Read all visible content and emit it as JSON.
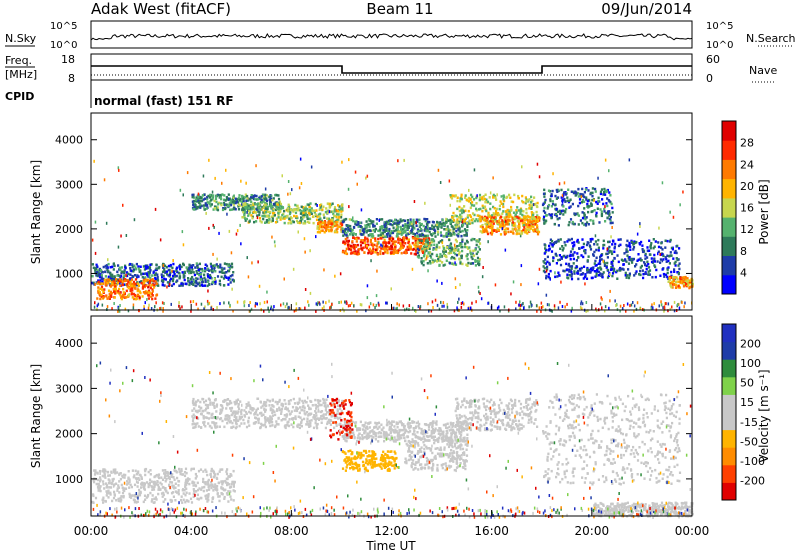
{
  "header": {
    "station": "Adak West (fitACF)",
    "beam": "Beam 11",
    "date": "09/Jun/2014"
  },
  "top_panels": {
    "nsky_label": "N.Sky",
    "nsky_ticks": [
      "10^5",
      "10^0"
    ],
    "nsearch_label": "N.Search",
    "nsearch_ticks": [
      "10^5",
      "10^0"
    ],
    "freq_label": "Freq.",
    "freq_unit": "[MHz]",
    "freq_ticks": [
      "18",
      "8"
    ],
    "nave_label": "Nave",
    "nave_ticks": [
      "60",
      "0"
    ],
    "cpid_label": "CPID",
    "cpid_text": "normal (fast) 151 RF"
  },
  "colors": {
    "power_scale": [
      "#0000ff",
      "#1e3ca8",
      "#2e7a5a",
      "#55b26e",
      "#c7d64e",
      "#ffb400",
      "#ff7a00",
      "#ff2a00",
      "#e00000"
    ],
    "velocity_scale": [
      "#e00000",
      "#ff4000",
      "#ff8c00",
      "#ffb400",
      "#c8c8c8",
      "#c8c8c8",
      "#7fd24a",
      "#2e8c3c",
      "#1e3ca8",
      "#2030c0"
    ]
  },
  "chart_data": [
    {
      "type": "heatmap",
      "name": "Power",
      "ylabel": "Slant Range [km]",
      "yticks": [
        "1000",
        "2000",
        "3000",
        "4000"
      ],
      "ylim": [
        180,
        4600
      ],
      "colorbar": {
        "label": "Power [dB]",
        "ticks": [
          "4",
          "8",
          "12",
          "16",
          "20",
          "24",
          "28"
        ],
        "range": [
          0,
          30
        ]
      },
      "regions": [
        {
          "t0": 0.0,
          "t1": 5.7,
          "r0": 750,
          "r1": 1250,
          "value": 6
        },
        {
          "t0": 0.2,
          "t1": 2.6,
          "r0": 450,
          "r1": 900,
          "value": 22
        },
        {
          "t0": 4.0,
          "t1": 7.5,
          "r0": 2450,
          "r1": 2800,
          "value": 9
        },
        {
          "t0": 6.0,
          "t1": 10.0,
          "r0": 2150,
          "r1": 2600,
          "value": 13
        },
        {
          "t0": 9.0,
          "t1": 10.0,
          "r0": 1950,
          "r1": 2200,
          "value": 20
        },
        {
          "t0": 10.0,
          "t1": 13.5,
          "r0": 1450,
          "r1": 1850,
          "value": 24
        },
        {
          "t0": 10.0,
          "t1": 15.0,
          "r0": 1850,
          "r1": 2250,
          "value": 9
        },
        {
          "t0": 13.0,
          "t1": 15.5,
          "r0": 1200,
          "r1": 1800,
          "value": 11
        },
        {
          "t0": 14.3,
          "t1": 17.8,
          "r0": 2100,
          "r1": 2800,
          "value": 15
        },
        {
          "t0": 15.5,
          "t1": 17.9,
          "r0": 1900,
          "r1": 2300,
          "value": 20
        },
        {
          "t0": 18.0,
          "t1": 20.8,
          "r0": 2100,
          "r1": 2950,
          "value": 7
        },
        {
          "t0": 18.0,
          "t1": 23.5,
          "r0": 900,
          "r1": 1800,
          "value": 5
        },
        {
          "t0": 23.0,
          "t1": 24.0,
          "r0": 700,
          "r1": 950,
          "value": 20
        }
      ]
    },
    {
      "type": "heatmap",
      "name": "Velocity",
      "ylabel": "Slant Range [km]",
      "yticks": [
        "1000",
        "2000",
        "3000",
        "4000"
      ],
      "ylim": [
        180,
        4600
      ],
      "colorbar": {
        "label": "Velocity [m s⁻¹]",
        "ticks": [
          "-200",
          "-100",
          "-50",
          "-15",
          "15",
          "50",
          "100",
          "200"
        ],
        "range": [
          -250,
          250
        ]
      },
      "xticks": [
        "00:00",
        "04:00",
        "08:00",
        "12:00",
        "16:00",
        "20:00",
        "00:00"
      ],
      "xlabel": "Time UT",
      "regions": [
        {
          "t0": 0.0,
          "t1": 5.7,
          "r0": 500,
          "r1": 1250,
          "value": 0
        },
        {
          "t0": 4.0,
          "t1": 10.0,
          "r0": 2150,
          "r1": 2800,
          "value": 0
        },
        {
          "t0": 10.0,
          "t1": 15.0,
          "r0": 1850,
          "r1": 2300,
          "value": 0
        },
        {
          "t0": 10.0,
          "t1": 12.2,
          "r0": 1200,
          "r1": 1650,
          "value": -80
        },
        {
          "t0": 12.5,
          "t1": 15.0,
          "r0": 1200,
          "r1": 1900,
          "value": -30
        },
        {
          "t0": 9.5,
          "t1": 10.4,
          "r0": 1900,
          "r1": 2800,
          "value": -200
        },
        {
          "t0": 14.5,
          "t1": 17.8,
          "r0": 2100,
          "r1": 2800,
          "value": 25
        },
        {
          "t0": 18.0,
          "t1": 23.5,
          "r0": 900,
          "r1": 2900,
          "value": 0
        },
        {
          "t0": 20.0,
          "t1": 24.0,
          "r0": 200,
          "r1": 500,
          "value": 25
        }
      ]
    }
  ]
}
